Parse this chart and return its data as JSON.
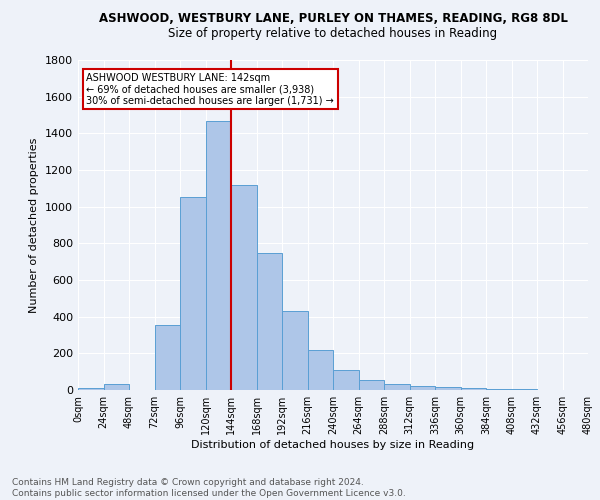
{
  "title": "ASHWOOD, WESTBURY LANE, PURLEY ON THAMES, READING, RG8 8DL",
  "subtitle": "Size of property relative to detached houses in Reading",
  "xlabel": "Distribution of detached houses by size in Reading",
  "ylabel": "Number of detached properties",
  "footer_line1": "Contains HM Land Registry data © Crown copyright and database right 2024.",
  "footer_line2": "Contains public sector information licensed under the Open Government Licence v3.0.",
  "bar_edges": [
    0,
    24,
    48,
    72,
    96,
    120,
    144,
    168,
    192,
    216,
    240,
    264,
    288,
    312,
    336,
    360,
    384,
    408,
    432,
    456,
    480
  ],
  "bar_heights": [
    10,
    35,
    0,
    355,
    1055,
    1465,
    1120,
    745,
    430,
    220,
    108,
    52,
    35,
    20,
    15,
    10,
    5,
    5,
    2,
    0
  ],
  "bar_color": "#aec6e8",
  "bar_edge_color": "#5a9fd4",
  "property_line_x": 144,
  "property_line_color": "#cc0000",
  "annotation_text": "ASHWOOD WESTBURY LANE: 142sqm\n← 69% of detached houses are smaller (3,938)\n30% of semi-detached houses are larger (1,731) →",
  "annotation_box_color": "#cc0000",
  "annotation_text_color": "#000000",
  "bg_color": "#eef2f9",
  "grid_color": "#ffffff",
  "ylim": [
    0,
    1800
  ],
  "yticks": [
    0,
    200,
    400,
    600,
    800,
    1000,
    1200,
    1400,
    1600,
    1800
  ],
  "xtick_labels": [
    "0sqm",
    "24sqm",
    "48sqm",
    "72sqm",
    "96sqm",
    "120sqm",
    "144sqm",
    "168sqm",
    "192sqm",
    "216sqm",
    "240sqm",
    "264sqm",
    "288sqm",
    "312sqm",
    "336sqm",
    "360sqm",
    "384sqm",
    "408sqm",
    "432sqm",
    "456sqm",
    "480sqm"
  ],
  "title_fontsize": 8.5,
  "subtitle_fontsize": 8.5,
  "ylabel_fontsize": 8.0,
  "xlabel_fontsize": 8.0,
  "ytick_fontsize": 8.0,
  "xtick_fontsize": 7.0,
  "footer_fontsize": 6.5
}
